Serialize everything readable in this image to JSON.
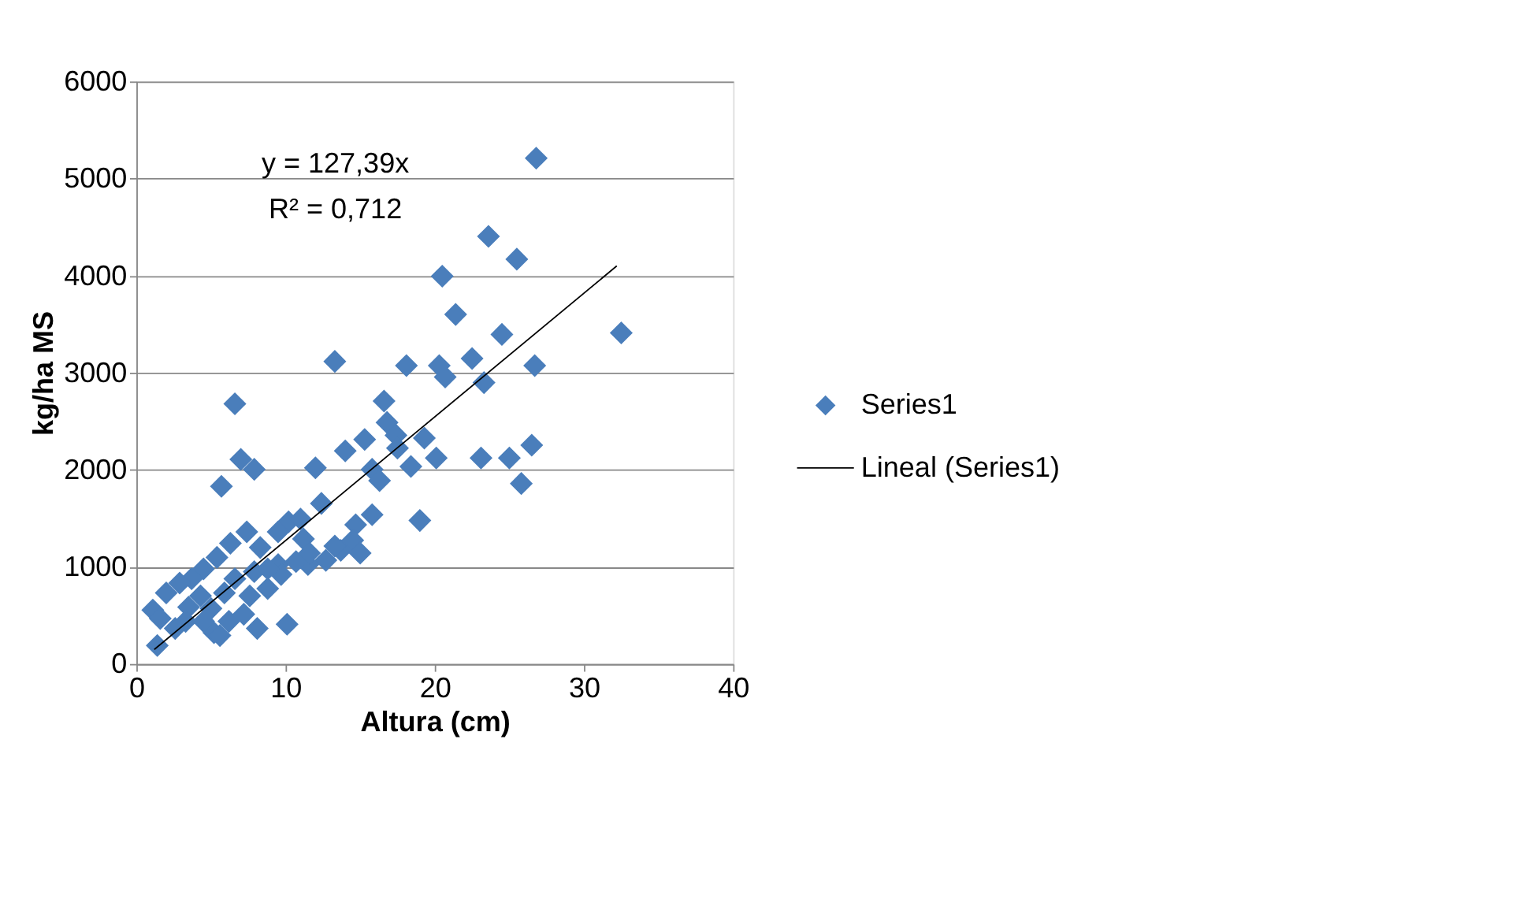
{
  "chart_data": {
    "type": "scatter",
    "xlabel": "Altura (cm)",
    "ylabel": "kg/ha MS",
    "annotations": [
      "y = 127,39x",
      "R² = 0,712"
    ],
    "xlim": [
      0,
      40
    ],
    "xticks": [
      0,
      10,
      20,
      30,
      40
    ],
    "ylim": [
      0,
      6000
    ],
    "yticks": [
      0,
      1000,
      2000,
      3000,
      4000,
      5000,
      6000
    ],
    "grid": "y",
    "legend": "right",
    "marker": "diamond",
    "series": [
      {
        "name": "Series1",
        "color": "#4a7ebb",
        "x": [
          26.8,
          23.6,
          25.5,
          20.5,
          21.4,
          24.5,
          32.5,
          13.3,
          18.1,
          22.5,
          20.3,
          26.7,
          20.7,
          23.3,
          6.6,
          16.6,
          16.8,
          17.4,
          14.0,
          15.3,
          17.5,
          19.3,
          20.1,
          23.1,
          25.0,
          26.5,
          25.8,
          7.0,
          7.9,
          5.7,
          12.0,
          15.8,
          18.4,
          19.0,
          16.3,
          12.4,
          15.8,
          14.7,
          14.5,
          13.7,
          12.7,
          11.5,
          11.2,
          10.2,
          11.0,
          9.5,
          7.4,
          8.3,
          9.5,
          10.1,
          6.3,
          5.4,
          4.5,
          3.7,
          2.9,
          2.0,
          1.1,
          1.6,
          1.4,
          2.6,
          3.5,
          4.3,
          5.0,
          5.2,
          6.2,
          7.2,
          7.6,
          7.9,
          6.6,
          5.9,
          8.8,
          9.7,
          10.7,
          11.6,
          13.3,
          15.0,
          8.8,
          3.3,
          4.5,
          8.1,
          5.6
        ],
        "values": [
          5210,
          4405,
          4170,
          3995,
          3600,
          3395,
          3410,
          3117,
          3073,
          3146,
          3073,
          3073,
          2956,
          2898,
          2680,
          2708,
          2488,
          2356,
          2195,
          2312,
          2224,
          2327,
          2122,
          2122,
          2122,
          2254,
          1859,
          2107,
          2005,
          1830,
          2020,
          2005,
          2034,
          1478,
          1888,
          1654,
          1537,
          1434,
          1273,
          1171,
          1068,
          1024,
          1288,
          1464,
          1493,
          1361,
          1361,
          1200,
          1024,
          410,
          1244,
          1098,
          980,
          878,
          834,
          732,
          556,
          468,
          190,
          366,
          585,
          702,
          571,
          322,
          439,
          512,
          702,
          951,
          878,
          732,
          776,
          922,
          1054,
          1142,
          1215,
          1142,
          980,
          439,
          439,
          366,
          293
        ]
      },
      {
        "name": "Lineal (Series1)",
        "color": "#000000",
        "type": "line",
        "marker": "none",
        "line_style": "solid",
        "x": [
          1.2,
          32.2
        ],
        "values": [
          150,
          4100
        ]
      }
    ]
  }
}
